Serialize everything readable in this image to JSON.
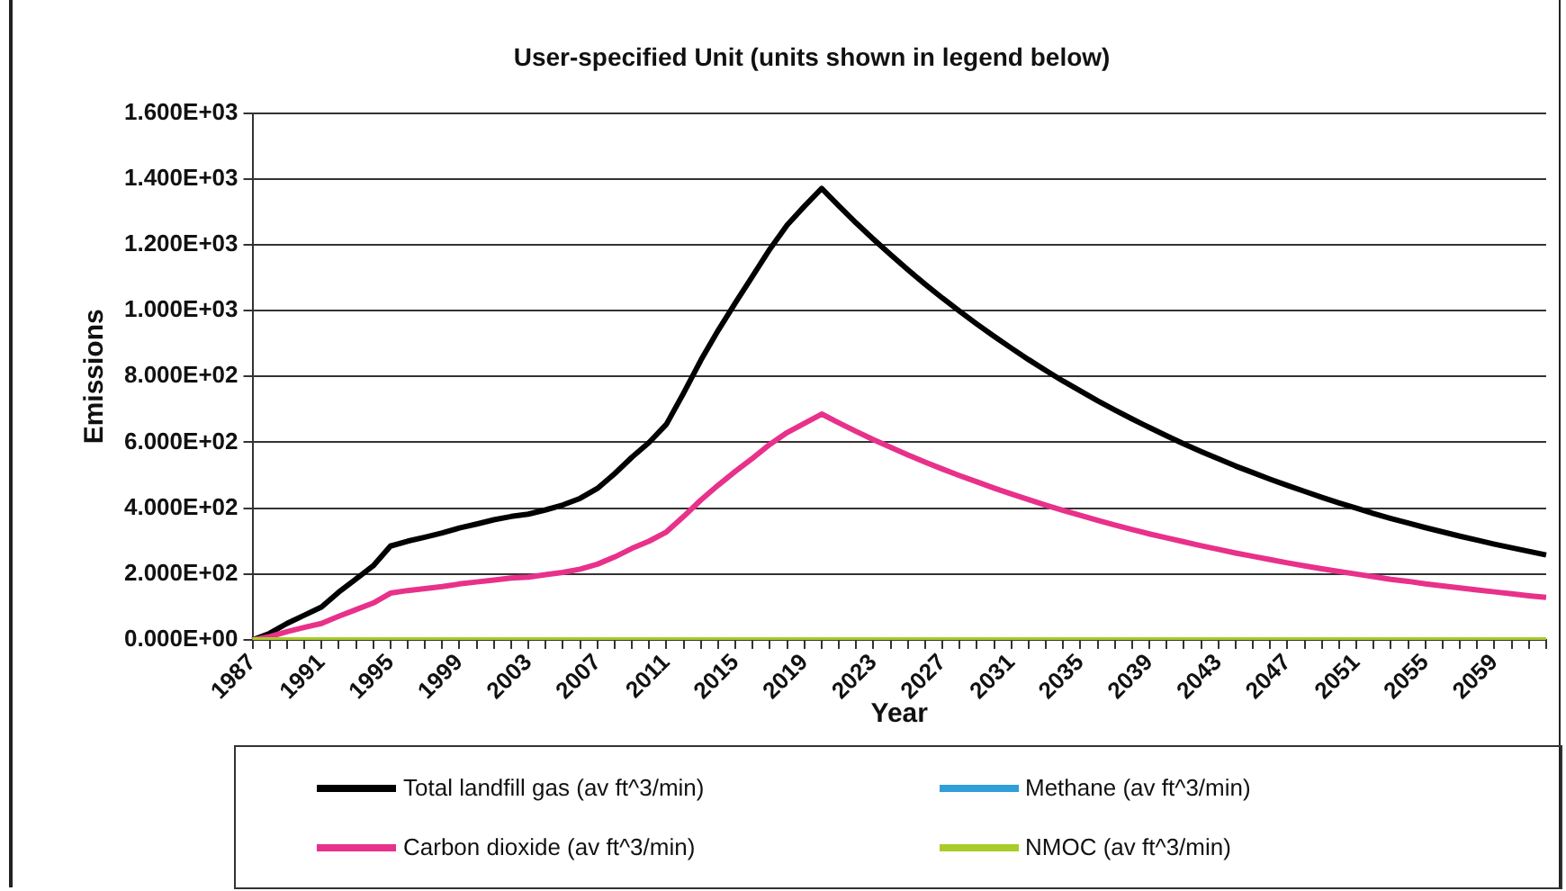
{
  "chart_data": {
    "type": "line",
    "title": "User-specified Unit (units shown in legend below)",
    "xlabel": "Year",
    "ylabel": "Emissions",
    "categories": [
      "1987",
      null,
      null,
      null,
      "1991",
      null,
      null,
      null,
      "1995",
      null,
      null,
      null,
      "1999",
      null,
      null,
      null,
      "2003",
      null,
      null,
      null,
      "2007",
      null,
      null,
      null,
      "2011",
      null,
      null,
      null,
      "2015",
      null,
      null,
      null,
      "2019",
      null,
      null,
      null,
      "2023",
      null,
      null,
      null,
      "2027",
      null,
      null,
      null,
      "2031",
      null,
      null,
      null,
      "2035",
      null,
      null,
      null,
      "2039",
      null,
      null,
      null,
      "2043",
      null,
      null,
      null,
      "2047",
      null,
      null,
      null,
      "2051",
      null,
      null,
      null,
      "2055",
      null,
      null,
      null,
      "2059",
      null,
      null,
      null
    ],
    "ylim": [
      0,
      1600
    ],
    "yticks": [
      {
        "value": 0,
        "label": "0.000E+00"
      },
      {
        "value": 200,
        "label": "2.000E+02"
      },
      {
        "value": 400,
        "label": "4.000E+02"
      },
      {
        "value": 600,
        "label": "6.000E+02"
      },
      {
        "value": 800,
        "label": "8.000E+02"
      },
      {
        "value": 1000,
        "label": "1.000E+03"
      },
      {
        "value": 1200,
        "label": "1.200E+03"
      },
      {
        "value": 1400,
        "label": "1.400E+03"
      },
      {
        "value": 1600,
        "label": "1.600E+03"
      }
    ],
    "grid": "y",
    "legend": "bottom",
    "marker": "none",
    "line_style": "solid",
    "series": [
      {
        "name": "Total landfill gas (av ft^3/min)",
        "color": "#000000",
        "values": [
          0,
          20,
          50,
          75,
          100,
          145,
          185,
          225,
          285,
          300,
          312,
          325,
          340,
          352,
          365,
          375,
          382,
          395,
          410,
          430,
          460,
          505,
          555,
          600,
          655,
          750,
          850,
          940,
          1024,
          1105,
          1187,
          1260,
          1317,
          1371,
          1318,
          1266,
          1217,
          1170,
          1124,
          1080,
          1038,
          998,
          959,
          922,
          886,
          851,
          818,
          786,
          756,
          726,
          698,
          671,
          645,
          620,
          595,
          572,
          550,
          528,
          508,
          488,
          469,
          451,
          433,
          416,
          400,
          384,
          369,
          355,
          341,
          328,
          315,
          303,
          291,
          280,
          269,
          258
        ]
      },
      {
        "name": "Methane (av ft^3/min)",
        "color": "#2e9fd8",
        "values": [
          null,
          null,
          null,
          null,
          null,
          null,
          null,
          null,
          null,
          null,
          null,
          null,
          null,
          null,
          null,
          null,
          null,
          null,
          null,
          null,
          null,
          null,
          null,
          null,
          null,
          null,
          null,
          null,
          null,
          null,
          null,
          null,
          null,
          null,
          null,
          null,
          null,
          null,
          null,
          null,
          null,
          null,
          null,
          null,
          null,
          null,
          null,
          null,
          null,
          null,
          null,
          null,
          null,
          null,
          null,
          null,
          null,
          null,
          null,
          null,
          null,
          null,
          null,
          null,
          null,
          null,
          null,
          null,
          null,
          null,
          null,
          null,
          null,
          null,
          null,
          null
        ]
      },
      {
        "name": "Carbon dioxide (av ft^3/min)",
        "color": "#e8318a",
        "values": [
          0,
          10,
          25,
          38,
          50,
          72,
          92,
          112,
          142,
          150,
          156,
          162,
          170,
          176,
          182,
          188,
          191,
          198,
          205,
          215,
          230,
          252,
          278,
          300,
          328,
          375,
          425,
          470,
          512,
          552,
          594,
          630,
          658,
          686,
          659,
          633,
          608,
          585,
          562,
          540,
          519,
          499,
          480,
          461,
          443,
          426,
          409,
          393,
          378,
          363,
          349,
          335,
          322,
          310,
          298,
          286,
          275,
          264,
          254,
          244,
          234,
          225,
          216,
          208,
          200,
          192,
          184,
          178,
          170,
          164,
          158,
          152,
          146,
          140,
          134,
          129
        ]
      },
      {
        "name": "NMOC (av ft^3/min)",
        "color": "#a8cc2a",
        "values": [
          0,
          0,
          0,
          0,
          0,
          0,
          0,
          0,
          0,
          0,
          0,
          0,
          0,
          0,
          0,
          0,
          0,
          0,
          0,
          0,
          0,
          0,
          0,
          0,
          0,
          0,
          0,
          0,
          0,
          0,
          0,
          0,
          0,
          0,
          0,
          0,
          0,
          0,
          0,
          0,
          0,
          0,
          0,
          0,
          0,
          0,
          0,
          0,
          0,
          0,
          0,
          0,
          0,
          0,
          0,
          0,
          0,
          0,
          0,
          0,
          0,
          0,
          0,
          0,
          0,
          0,
          0,
          0,
          0,
          0,
          0,
          0,
          0,
          0,
          0,
          0
        ]
      }
    ]
  }
}
